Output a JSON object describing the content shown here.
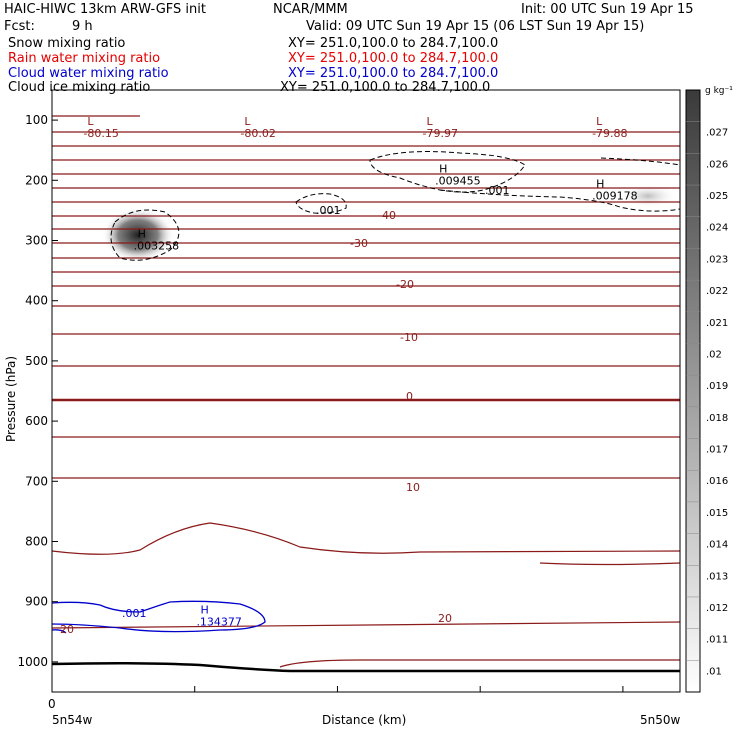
{
  "header": {
    "model": "HAIC-HIWC 13km ARW-GFS init",
    "org": "NCAR/MMM",
    "init": "Init: 00 UTC Sun 19 Apr 15",
    "fcst_label": "Fcst:",
    "fcst_value": "9 h",
    "valid": "Valid: 09 UTC Sun 19 Apr 15 (06 LST Sun 19 Apr 15)"
  },
  "fields": [
    {
      "name": "Snow mixing ratio",
      "xy": "XY= 251.0,100.0 to 284.7,100.0",
      "color": "#000000"
    },
    {
      "name": "Rain water mixing ratio",
      "xy": "XY= 251.0,100.0 to 284.7,100.0",
      "color": "#e60000"
    },
    {
      "name": "Cloud water mixing ratio",
      "xy": "XY= 251.0,100.0 to 284.7,100.0",
      "color": "#0000cc"
    },
    {
      "name": "Cloud ice mixing ratio",
      "xy": "XY= 251.0,100.0 to 284.7,100.0",
      "color": "#000000"
    }
  ],
  "chart_data": {
    "type": "contour",
    "ylabel": "Pressure (hPa)",
    "xlabel": "Distance (km)",
    "x_start_label": "5n54w",
    "x_end_label": "5n50w",
    "x_zero_label": "0",
    "ylim": [
      1050,
      50
    ],
    "yticks": [
      100,
      200,
      300,
      400,
      500,
      600,
      700,
      800,
      900,
      1000
    ],
    "colorbar": {
      "unit": "g kg⁻¹",
      "levels": [
        ".01",
        ".011",
        ".012",
        ".013",
        ".014",
        ".015",
        ".016",
        ".017",
        ".018",
        ".019",
        ".02",
        ".021",
        ".022",
        ".023",
        ".024",
        ".025",
        ".026",
        ".027"
      ]
    },
    "temperature_labels": [
      "-40",
      "-30",
      "-20",
      "-10",
      "0",
      "10",
      "20",
      "20"
    ],
    "extrema": [
      {
        "type": "L",
        "value": "-80.15",
        "x_frac": 0.05,
        "p": 108
      },
      {
        "type": "L",
        "value": "-80.02",
        "x_frac": 0.3,
        "p": 108
      },
      {
        "type": "L",
        "value": "-79.97",
        "x_frac": 0.59,
        "p": 108
      },
      {
        "type": "L",
        "value": "-79.88",
        "x_frac": 0.86,
        "p": 108
      },
      {
        "type": "H",
        "value": ".009455",
        "x_frac": 0.61,
        "p": 187
      },
      {
        "type": "H",
        "value": ".009178",
        "x_frac": 0.86,
        "p": 212
      },
      {
        "type": "H",
        "value": ".003258",
        "x_frac": 0.13,
        "p": 295
      },
      {
        "type": "H",
        "value": ".134377",
        "x_frac": 0.23,
        "p": 920
      }
    ],
    "cloud_labels": [
      ".001",
      ".001",
      ".001"
    ]
  }
}
